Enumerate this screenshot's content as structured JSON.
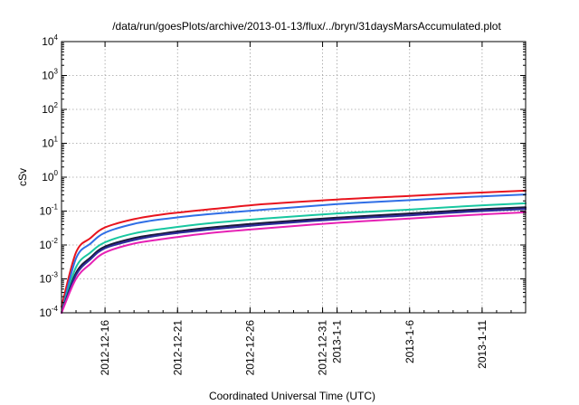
{
  "chart_data": {
    "type": "line",
    "title": "/data/run/goesPlots/archive/2013-01-13/flux/../bryn/31daysMarsAccumulated.plot",
    "xlabel": "Coordinated Universal Time (UTC)",
    "ylabel": "cSv",
    "x_unit": "date (UTC)",
    "xlim": [
      "2012-12-13",
      "2013-01-14"
    ],
    "ylim": [
      0.0001,
      10000
    ],
    "yscale": "log",
    "grid": true,
    "y_ticks": [
      {
        "value": 0.0001,
        "base": "10",
        "exp": "-4"
      },
      {
        "value": 0.001,
        "base": "10",
        "exp": "-3"
      },
      {
        "value": 0.01,
        "base": "10",
        "exp": "-2"
      },
      {
        "value": 0.1,
        "base": "10",
        "exp": "-1"
      },
      {
        "value": 1,
        "base": "10",
        "exp": "0"
      },
      {
        "value": 10,
        "base": "10",
        "exp": "1"
      },
      {
        "value": 100,
        "base": "10",
        "exp": "2"
      },
      {
        "value": 1000,
        "base": "10",
        "exp": "3"
      },
      {
        "value": 10000,
        "base": "10",
        "exp": "4"
      }
    ],
    "x_ticks": [
      {
        "date": "2012-12-16",
        "label": "2012-12-16"
      },
      {
        "date": "2012-12-21",
        "label": "2012-12-21"
      },
      {
        "date": "2012-12-26",
        "label": "2012-12-26"
      },
      {
        "date": "2012-12-31",
        "label": "2012-12-31"
      },
      {
        "date": "2013-01-01",
        "label": "2013-1-1"
      },
      {
        "date": "2013-01-06",
        "label": "2013-1-6"
      },
      {
        "date": "2013-01-11",
        "label": "2013-1-11"
      }
    ],
    "x": [
      "2012-12-13",
      "2012-12-14",
      "2012-12-15",
      "2012-12-16",
      "2012-12-18",
      "2012-12-20",
      "2012-12-23",
      "2012-12-27",
      "2013-01-01",
      "2013-01-06",
      "2013-01-10",
      "2013-01-14"
    ],
    "series": [
      {
        "color": "#e8141e",
        "values": [
          0.00015,
          0.006,
          0.016,
          0.033,
          0.058,
          0.08,
          0.11,
          0.16,
          0.22,
          0.28,
          0.34,
          0.4
        ]
      },
      {
        "color": "#2f6ee6",
        "values": [
          0.0001,
          0.004,
          0.011,
          0.023,
          0.042,
          0.058,
          0.08,
          0.11,
          0.16,
          0.21,
          0.26,
          0.31
        ]
      },
      {
        "color": "#18c7a0",
        "values": [
          0.0001,
          0.0022,
          0.006,
          0.012,
          0.022,
          0.03,
          0.043,
          0.06,
          0.085,
          0.11,
          0.14,
          0.17
        ]
      },
      {
        "color": "#7a3fe6",
        "values": [
          0.0001,
          0.0014,
          0.004,
          0.0085,
          0.015,
          0.021,
          0.03,
          0.043,
          0.06,
          0.08,
          0.1,
          0.12
        ]
      },
      {
        "color": "#1a1a3a",
        "values": [
          0.0001,
          0.0015,
          0.0043,
          0.009,
          0.016,
          0.022,
          0.032,
          0.045,
          0.064,
          0.085,
          0.108,
          0.13
        ]
      },
      {
        "color": "#2c2c9a",
        "values": [
          0.0001,
          0.0013,
          0.0038,
          0.008,
          0.014,
          0.02,
          0.028,
          0.04,
          0.057,
          0.075,
          0.095,
          0.115
        ]
      },
      {
        "color": "#e620b4",
        "values": [
          0.0001,
          0.001,
          0.0028,
          0.006,
          0.011,
          0.015,
          0.022,
          0.031,
          0.045,
          0.06,
          0.076,
          0.092
        ]
      }
    ]
  }
}
